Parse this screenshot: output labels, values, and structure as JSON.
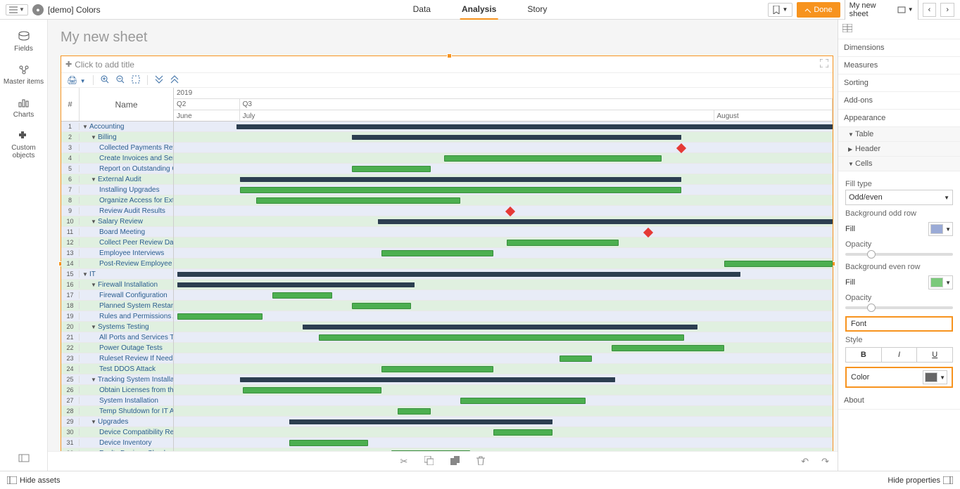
{
  "topbar": {
    "doc_title": "[demo] Colors",
    "tab_data": "Data",
    "tab_analysis": "Analysis",
    "tab_story": "Story",
    "done": "Done",
    "sheet_dd": "My new sheet"
  },
  "side": {
    "fields": "Fields",
    "master": "Master items",
    "charts": "Charts",
    "custom": "Custom objects"
  },
  "sheet_title": "My new sheet",
  "gantt": {
    "add_title": "Click to add title",
    "header_num": "#",
    "header_name": "Name",
    "year": "2019",
    "quarters": [
      {
        "label": "Q2",
        "width": 10
      },
      {
        "label": "Q3",
        "width": 90
      }
    ],
    "months": [
      {
        "label": "June",
        "width": 10
      },
      {
        "label": "July",
        "width": 72
      },
      {
        "label": "August",
        "width": 18
      }
    ],
    "colors": {
      "odd": "#e8ecf7",
      "even": "#e0f0e0",
      "summary": "#2c3e50",
      "task": "#4caf50",
      "milestone": "#e53935"
    },
    "rows": [
      {
        "n": 1,
        "name": "Accounting",
        "indent": 0,
        "toggle": "▼",
        "type": "summary",
        "l": 9.5,
        "w": 90.5
      },
      {
        "n": 2,
        "name": "Billing",
        "indent": 1,
        "toggle": "▼",
        "type": "summary",
        "l": 27,
        "w": 50
      },
      {
        "n": 3,
        "name": "Collected Payments Review",
        "indent": 2,
        "type": "milestone",
        "l": 76.5
      },
      {
        "n": 4,
        "name": "Create Invoices and Send Them",
        "indent": 2,
        "type": "task",
        "l": 41,
        "w": 33
      },
      {
        "n": 5,
        "name": "Report on Outstanding Collections",
        "indent": 2,
        "type": "task",
        "l": 27,
        "w": 12
      },
      {
        "n": 6,
        "name": "External Audit",
        "indent": 1,
        "toggle": "▼",
        "type": "summary",
        "l": 10,
        "w": 67
      },
      {
        "n": 7,
        "name": "Installing Upgrades",
        "indent": 2,
        "type": "task",
        "l": 10,
        "w": 67
      },
      {
        "n": 8,
        "name": "Organize Access for External Auditors",
        "indent": 2,
        "type": "task",
        "l": 12.5,
        "w": 31
      },
      {
        "n": 9,
        "name": "Review Audit Results",
        "indent": 2,
        "type": "milestone",
        "l": 50.5
      },
      {
        "n": 10,
        "name": "Salary Review",
        "indent": 1,
        "toggle": "▼",
        "type": "summary",
        "l": 31,
        "w": 69
      },
      {
        "n": 11,
        "name": "Board Meeting",
        "indent": 2,
        "type": "milestone",
        "l": 71.5
      },
      {
        "n": 12,
        "name": "Collect Peer Review Data",
        "indent": 2,
        "type": "task",
        "l": 50.5,
        "w": 17
      },
      {
        "n": 13,
        "name": "Employee Interviews",
        "indent": 2,
        "type": "task",
        "l": 31.5,
        "w": 17
      },
      {
        "n": 14,
        "name": "Post-Review Employee Interview",
        "indent": 2,
        "type": "task",
        "l": 83.5,
        "w": 16.5
      },
      {
        "n": 15,
        "name": "IT",
        "indent": 0,
        "toggle": "▼",
        "type": "summary",
        "l": 0.5,
        "w": 85.5
      },
      {
        "n": 16,
        "name": "Firewall Installation",
        "indent": 1,
        "toggle": "▼",
        "type": "summary",
        "l": 0.5,
        "w": 36
      },
      {
        "n": 17,
        "name": "Firewall Configuration",
        "indent": 2,
        "type": "task",
        "l": 15,
        "w": 9
      },
      {
        "n": 18,
        "name": "Planned System Restart",
        "indent": 2,
        "type": "task",
        "l": 27,
        "w": 9
      },
      {
        "n": 19,
        "name": "Rules and Permissions Audit",
        "indent": 2,
        "type": "task",
        "l": 0.5,
        "w": 13
      },
      {
        "n": 20,
        "name": "Systems Testing",
        "indent": 1,
        "toggle": "▼",
        "type": "summary",
        "l": 19.5,
        "w": 60
      },
      {
        "n": 21,
        "name": "All Ports and Services Tested",
        "indent": 2,
        "type": "task",
        "l": 22,
        "w": 55.5
      },
      {
        "n": 22,
        "name": "Power Outage Tests",
        "indent": 2,
        "type": "task",
        "l": 66.5,
        "w": 17
      },
      {
        "n": 23,
        "name": "Ruleset Review If Needed",
        "indent": 2,
        "type": "task",
        "l": 58.5,
        "w": 5
      },
      {
        "n": 24,
        "name": "Test DDOS Attack",
        "indent": 2,
        "type": "task",
        "l": 31.5,
        "w": 17
      },
      {
        "n": 25,
        "name": "Tracking System Installation",
        "indent": 1,
        "toggle": "▼",
        "type": "summary",
        "l": 10,
        "w": 57
      },
      {
        "n": 26,
        "name": "Obtain Licenses from the Vendor",
        "indent": 2,
        "type": "task",
        "l": 10.5,
        "w": 21
      },
      {
        "n": 27,
        "name": "System Installation",
        "indent": 2,
        "type": "task",
        "l": 43.5,
        "w": 19
      },
      {
        "n": 28,
        "name": "Temp Shutdown for IT Audit",
        "indent": 2,
        "type": "task",
        "l": 34,
        "w": 5
      },
      {
        "n": 29,
        "name": "Upgrades",
        "indent": 1,
        "toggle": "▼",
        "type": "summary",
        "l": 17.5,
        "w": 40
      },
      {
        "n": 30,
        "name": "Device Compatibility Review",
        "indent": 2,
        "type": "task",
        "l": 48.5,
        "w": 9
      },
      {
        "n": 31,
        "name": "Device Inventory",
        "indent": 2,
        "type": "task",
        "l": 17.5,
        "w": 12
      },
      {
        "n": 32,
        "name": "Faulty Devices Check",
        "indent": 2,
        "type": "task",
        "l": 33,
        "w": 12
      }
    ]
  },
  "props": {
    "dimensions": "Dimensions",
    "measures": "Measures",
    "sorting": "Sorting",
    "addons": "Add-ons",
    "appearance": "Appearance",
    "table": "Table",
    "header": "Header",
    "cells": "Cells",
    "fill_type": "Fill type",
    "fill_type_val": "Odd/even",
    "bg_odd": "Background odd row",
    "bg_even": "Background even row",
    "fill": "Fill",
    "opacity": "Opacity",
    "font": "Font",
    "style": "Style",
    "bold": "B",
    "italic": "I",
    "underline": "U",
    "color": "Color",
    "about": "About",
    "odd_swatch": "#9aaad6",
    "even_swatch": "#7bc97b",
    "font_color_swatch": "#666666"
  },
  "status": {
    "hide_assets": "Hide assets",
    "hide_props": "Hide properties"
  }
}
